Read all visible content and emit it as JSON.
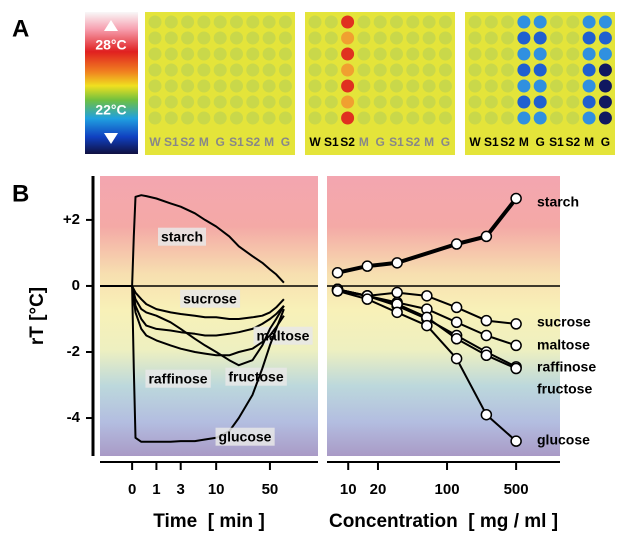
{
  "panel_a": {
    "label": "A",
    "scale": {
      "high": "28°C",
      "low": "22°C"
    },
    "images": [
      {
        "lanes": [
          "W",
          "S1",
          "S2",
          "M",
          "G",
          "S1",
          "S2",
          "M",
          "G"
        ]
      },
      {
        "lanes": [
          "W",
          "S1",
          "S2",
          "M",
          "G",
          "S1",
          "S2",
          "M",
          "G"
        ]
      },
      {
        "lanes": [
          "W",
          "S1",
          "S2",
          "M",
          "G",
          "S1",
          "S2",
          "M",
          "G"
        ]
      }
    ]
  },
  "panel_b": {
    "label": "B"
  },
  "chart_data": [
    {
      "type": "line",
      "xlabel": "Time  [ min ]",
      "ylabel": "rT [°C]",
      "xscale": "log1p",
      "x": [
        -0.6,
        -0.3,
        0,
        0.05,
        0.1,
        0.3,
        0.5,
        1,
        2,
        3,
        5,
        7,
        10,
        15,
        20,
        30,
        40,
        50,
        60,
        75
      ],
      "xlim": [
        -0.6,
        200
      ],
      "xticks": [
        0,
        1,
        3,
        10,
        50
      ],
      "ylim": [
        -5.15,
        3.33
      ],
      "yticks": [
        {
          "value": 2,
          "label": "+2"
        },
        0,
        -2,
        -4
      ],
      "hline": 0,
      "series": [
        {
          "name": "starch",
          "color": "#000000",
          "values": [
            0,
            0,
            0,
            1.5,
            2.7,
            2.75,
            2.72,
            2.65,
            2.5,
            2.4,
            2.2,
            2.0,
            1.8,
            1.5,
            1.2,
            0.9,
            0.7,
            0.5,
            0.35,
            0.1
          ]
        },
        {
          "name": "sucrose",
          "color": "#000000",
          "values": [
            0,
            0,
            0,
            -0.1,
            -0.2,
            -0.4,
            -0.55,
            -0.7,
            -0.8,
            -0.85,
            -0.9,
            -0.95,
            -0.95,
            -1.0,
            -1.0,
            -0.95,
            -0.9,
            -0.8,
            -0.65,
            -0.4
          ]
        },
        {
          "name": "maltose",
          "color": "#000000",
          "values": [
            0,
            0,
            0,
            -0.3,
            -0.6,
            -1.0,
            -1.2,
            -1.3,
            -1.35,
            -1.4,
            -1.45,
            -1.5,
            -1.5,
            -1.45,
            -1.4,
            -1.3,
            -1.15,
            -1.0,
            -0.85,
            -0.6
          ]
        },
        {
          "name": "raffinose",
          "color": "#000000",
          "values": [
            0,
            0,
            0,
            -0.4,
            -0.8,
            -1.3,
            -1.5,
            -1.65,
            -1.8,
            -1.9,
            -2.0,
            -2.05,
            -2.1,
            -2.1,
            -2.0,
            -1.9,
            -1.7,
            -1.5,
            -1.25,
            -0.9
          ]
        },
        {
          "name": "fructose",
          "color": "#000000",
          "values": [
            0,
            0,
            0,
            -0.2,
            -0.4,
            -0.7,
            -0.8,
            -0.9,
            -1.1,
            -1.3,
            -1.6,
            -1.8,
            -2.0,
            -2.25,
            -2.4,
            -2.25,
            -1.8,
            -1.3,
            -1.0,
            -0.6
          ]
        },
        {
          "name": "glucose",
          "color": "#000000",
          "values": [
            0,
            0,
            0,
            -2.5,
            -4.6,
            -4.72,
            -4.72,
            -4.72,
            -4.72,
            -4.7,
            -4.7,
            -4.65,
            -4.6,
            -4.4,
            -4.0,
            -3.3,
            -2.5,
            -1.8,
            -1.3,
            -0.7
          ]
        }
      ]
    },
    {
      "type": "scatter",
      "xlabel": "Concentration  [ mg / ml ]",
      "xscale": "log",
      "x": [
        7.8,
        15.6,
        31.25,
        62.5,
        125,
        250,
        500
      ],
      "xlim": [
        6.1,
        1390
      ],
      "xticks": [
        10,
        20,
        100,
        500
      ],
      "ylim": [
        -5.15,
        3.33
      ],
      "hline": 0,
      "series": [
        {
          "name": "starch",
          "color": "#000000",
          "x": [
            7.8,
            15.6,
            31.25,
            125,
            250,
            500
          ],
          "values": [
            0.4,
            0.6,
            0.7,
            1.27,
            1.5,
            2.65
          ]
        },
        {
          "name": "sucrose",
          "color": "#000000",
          "values": [
            -0.15,
            -0.3,
            -0.2,
            -0.3,
            -0.65,
            -1.05,
            -1.15
          ]
        },
        {
          "name": "maltose",
          "color": "#000000",
          "values": [
            -0.1,
            -0.3,
            -0.5,
            -0.7,
            -1.1,
            -1.5,
            -1.8
          ]
        },
        {
          "name": "raffinose",
          "color": "#000000",
          "values": [
            -0.1,
            -0.3,
            -0.6,
            -1.0,
            -1.5,
            -2.0,
            -2.45
          ]
        },
        {
          "name": "fructose",
          "color": "#000000",
          "values": [
            -0.1,
            -0.3,
            -0.55,
            -0.95,
            -1.6,
            -2.1,
            -2.5
          ]
        },
        {
          "name": "glucose",
          "color": "#000000",
          "values": [
            -0.15,
            -0.4,
            -0.8,
            -1.2,
            -2.2,
            -3.9,
            -4.7
          ]
        }
      ]
    }
  ]
}
